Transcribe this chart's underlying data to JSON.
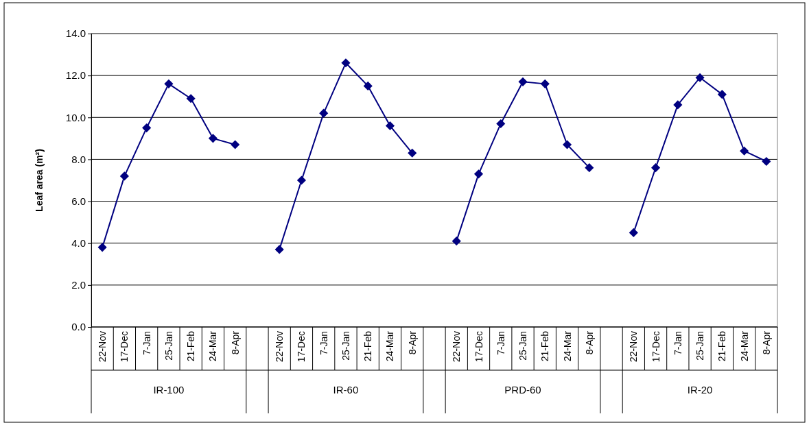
{
  "chart_data": {
    "type": "line",
    "ylabel": "Leaf area (m²)",
    "categories": [
      "22-Nov",
      "17-Dec",
      "7-Jan",
      "25-Jan",
      "21-Feb",
      "24-Mar",
      "8-Apr",
      null,
      "22-Nov",
      "17-Dec",
      "7-Jan",
      "25-Jan",
      "21-Feb",
      "24-Mar",
      "8-Apr",
      null,
      "22-Nov",
      "17-Dec",
      "7-Jan",
      "25-Jan",
      "21-Feb",
      "24-Mar",
      "8-Apr",
      null,
      "22-Nov",
      "17-Dec",
      "7-Jan",
      "25-Jan",
      "21-Feb",
      "24-Mar",
      "8-Apr"
    ],
    "series": [
      {
        "color": "#000080",
        "values": [
          3.8,
          7.2,
          9.5,
          11.6,
          10.9,
          9.0,
          8.7,
          null,
          3.7,
          7.0,
          10.2,
          12.6,
          11.5,
          9.6,
          8.3,
          null,
          4.1,
          7.3,
          9.7,
          11.7,
          11.6,
          8.7,
          7.6,
          null,
          4.5,
          7.6,
          10.6,
          11.9,
          11.1,
          8.4,
          7.9
        ]
      }
    ],
    "annotations": [
      "IR-100",
      "IR-60",
      "PRD-60",
      "IR-20"
    ],
    "ylim": [
      0,
      14
    ],
    "yticks": [
      {
        "value": 0,
        "label": "0.0"
      },
      {
        "value": 2,
        "label": "2.0"
      },
      {
        "value": 4,
        "label": "4.0"
      },
      {
        "value": 6,
        "label": "6.0"
      },
      {
        "value": 8,
        "label": "8.0"
      },
      {
        "value": 10,
        "label": "10.0"
      },
      {
        "value": 12,
        "label": "12.0"
      },
      {
        "value": 14,
        "label": "14.0"
      }
    ],
    "grid": "y",
    "marker": "diamond",
    "line_style": "solid"
  }
}
